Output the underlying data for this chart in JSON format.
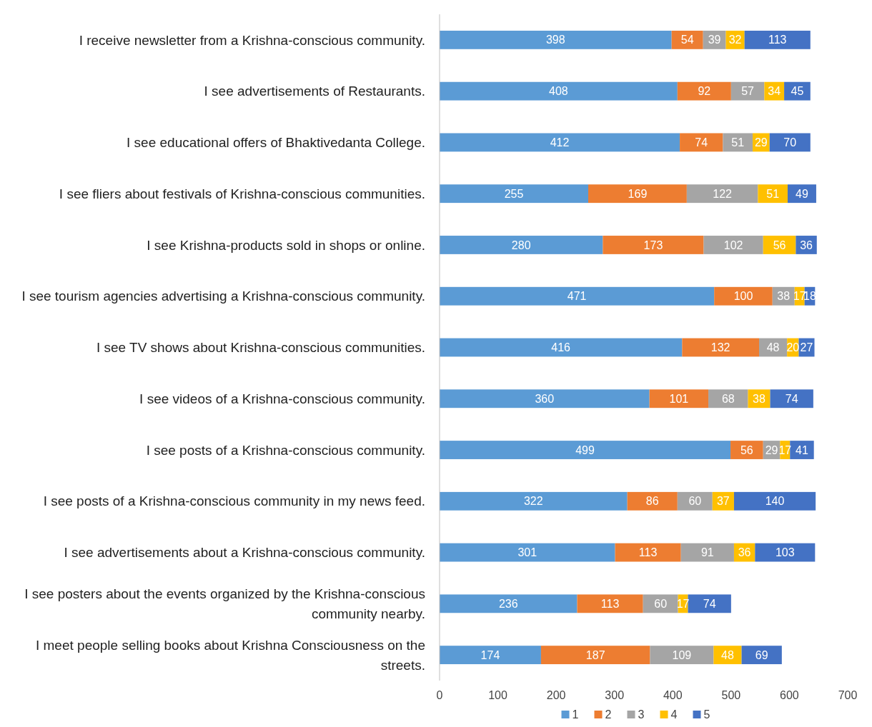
{
  "chart_data": {
    "type": "bar",
    "orientation": "horizontal",
    "stacked": true,
    "data_labels": true,
    "legend": "bottom",
    "grid": false,
    "categories": [
      "I receive newsletter from a Krishna-conscious community.",
      "I see advertisements of Restaurants.",
      "I see educational offers of Bhaktivedanta College.",
      "I see fliers about festivals of Krishna-conscious communities.",
      "I see Krishna-products sold in shops or online.",
      "I see tourism agencies advertising a Krishna-conscious community.",
      "I see TV shows about Krishna-conscious communities.",
      "I see videos of a Krishna-conscious community.",
      "I see posts of a Krishna-conscious community.",
      "I see posts of a Krishna-conscious community in my news feed.",
      "I see advertisements about a Krishna-conscious community.",
      "I see posters about the events organized by the Krishna-conscious community nearby.",
      "I meet people selling books about Krishna Consciousness on the streets."
    ],
    "series": [
      {
        "name": "1",
        "color": "#5b9bd5",
        "values": [
          398,
          408,
          412,
          255,
          280,
          471,
          416,
          360,
          499,
          322,
          301,
          236,
          174
        ]
      },
      {
        "name": "2",
        "color": "#ed7d31",
        "values": [
          54,
          92,
          74,
          169,
          173,
          100,
          132,
          101,
          56,
          86,
          113,
          113,
          187
        ]
      },
      {
        "name": "3",
        "color": "#a5a5a5",
        "values": [
          39,
          57,
          51,
          122,
          102,
          38,
          48,
          68,
          29,
          60,
          91,
          60,
          109
        ]
      },
      {
        "name": "4",
        "color": "#ffc000",
        "values": [
          32,
          34,
          29,
          51,
          56,
          17,
          20,
          38,
          17,
          37,
          36,
          17,
          48
        ]
      },
      {
        "name": "5",
        "color": "#4472c4",
        "values": [
          113,
          45,
          70,
          49,
          36,
          18,
          27,
          74,
          41,
          140,
          103,
          74,
          69
        ]
      }
    ],
    "xlim": [
      0,
      700
    ],
    "xticks": [
      0,
      100,
      200,
      300,
      400,
      500,
      600,
      700
    ]
  }
}
